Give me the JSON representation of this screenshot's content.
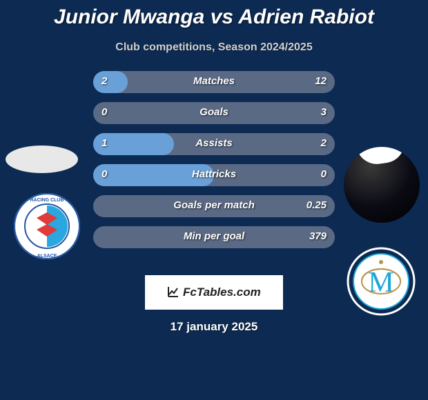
{
  "title": "Junior Mwanga vs Adrien Rabiot",
  "subtitle": "Club competitions, Season 2024/2025",
  "date": "17 january 2025",
  "badge_label": "FcTables.com",
  "colors": {
    "background": "#0d2a52",
    "bar_bg": "#5a6a85",
    "bar_fill_p1": "#6aa0d8",
    "bar_fill_p2": "#aab8c8",
    "text": "#ffffff"
  },
  "stats": [
    {
      "label": "Matches",
      "p1": "2",
      "p2": "12",
      "p1_num": 2,
      "p2_num": 12,
      "fill_pct": 14.3
    },
    {
      "label": "Goals",
      "p1": "0",
      "p2": "3",
      "p1_num": 0,
      "p2_num": 3,
      "fill_pct": 0
    },
    {
      "label": "Assists",
      "p1": "1",
      "p2": "2",
      "p1_num": 1,
      "p2_num": 2,
      "fill_pct": 33.3
    },
    {
      "label": "Hattricks",
      "p1": "0",
      "p2": "0",
      "p1_num": 0,
      "p2_num": 0,
      "fill_pct": 50
    },
    {
      "label": "Goals per match",
      "p1": "",
      "p2": "0.25",
      "p1_num": 0,
      "p2_num": 0.25,
      "fill_pct": 0
    },
    {
      "label": "Min per goal",
      "p1": "",
      "p2": "379",
      "p1_num": 0,
      "p2_num": 379,
      "fill_pct": 0
    }
  ],
  "club_left": {
    "name": "Racing Club Strasbourg Alsace",
    "outer_text_color": "#2257a6",
    "ring_color": "#ffffff",
    "inner_bg": "#ffffff",
    "accent_blue": "#2aa7df",
    "accent_red": "#e03a3a"
  },
  "club_right": {
    "name": "Olympique de Marseille",
    "ring_color": "#ffffff",
    "inner_bg": "#ffffff",
    "accent": "#1ca7d8",
    "letter": "M"
  }
}
